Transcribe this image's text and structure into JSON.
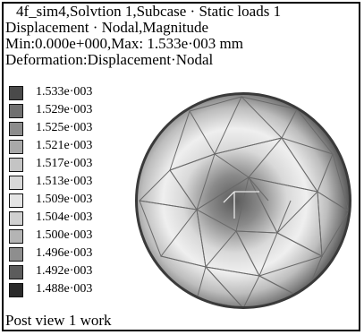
{
  "header": {
    "line1": "4f_sim4,Solvtion 1,Subcase · Static loads 1",
    "line2": "Displacement · Nodal,Magnitude",
    "line3": "Min:0.000e+000,Max: 1.533e·003 mm",
    "line4": "Deformation:Displacement·Nodal"
  },
  "legend": {
    "items": [
      {
        "label": "1.533e·003",
        "color": "#4a4a4a"
      },
      {
        "label": "1.529e·003",
        "color": "#707070"
      },
      {
        "label": "1.525e·003",
        "color": "#8c8c8c"
      },
      {
        "label": "1.521e·003",
        "color": "#a8a8a8"
      },
      {
        "label": "1.517e·003",
        "color": "#c4c4c4"
      },
      {
        "label": "1.513e·003",
        "color": "#d8d8d8"
      },
      {
        "label": "1.509e·003",
        "color": "#e4e4e4"
      },
      {
        "label": "1.504e·003",
        "color": "#d0d0d0"
      },
      {
        "label": "1.500e·003",
        "color": "#b4b4b4"
      },
      {
        "label": "1.496e·003",
        "color": "#8e8e8e"
      },
      {
        "label": "1.492e·003",
        "color": "#5c5c5c"
      },
      {
        "label": "1.488e·003",
        "color": "#2a2a2a"
      }
    ]
  },
  "footer": {
    "status": "Post view 1 work"
  }
}
